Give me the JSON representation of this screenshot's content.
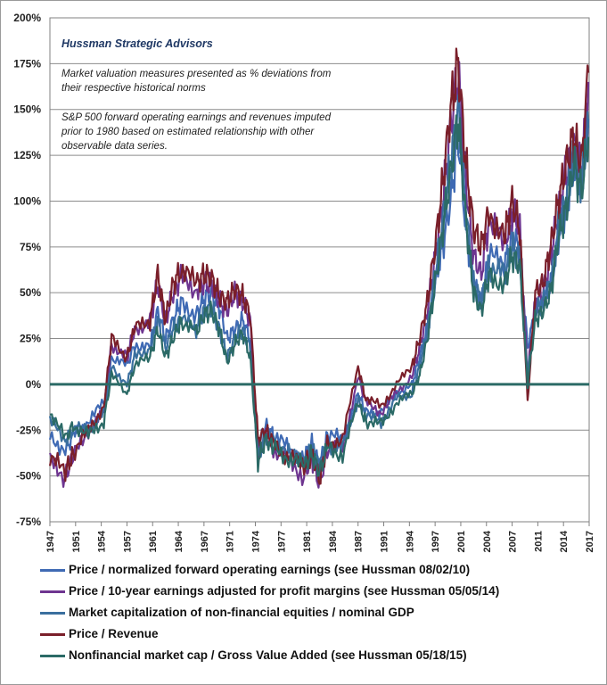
{
  "chart_data": {
    "type": "line",
    "title": "Hussman Strategic Advisors",
    "annotations": [
      "Market valuation measures presented as % deviations from",
      "their respective historical norms",
      "S&P 500 forward operating earnings and revenues imputed",
      "prior to 1980 based on estimated relationship with other",
      "observable data series."
    ],
    "ylim": [
      -75,
      200
    ],
    "yticks": [
      -75,
      -50,
      -25,
      0,
      25,
      50,
      75,
      100,
      125,
      150,
      175,
      200
    ],
    "ytick_labels": [
      "-75%",
      "-50%",
      "-25%",
      "0%",
      "25%",
      "50%",
      "75%",
      "100%",
      "125%",
      "150%",
      "175%",
      "200%"
    ],
    "xlim": [
      1947,
      2017
    ],
    "xtick_labels": [
      "1947",
      "1951",
      "1954",
      "1957",
      "1961",
      "1964",
      "1967",
      "1971",
      "1974",
      "1977",
      "1981",
      "1984",
      "1987",
      "1991",
      "1994",
      "1997",
      "2001",
      "2004",
      "2007",
      "2011",
      "2014",
      "2017"
    ],
    "xlabel": "",
    "ylabel": "",
    "x": [
      1947,
      1949,
      1950,
      1952,
      1954,
      1955,
      1957,
      1958,
      1960,
      1961,
      1962,
      1963,
      1964,
      1966,
      1967,
      1968,
      1969,
      1970,
      1971,
      1972,
      1973,
      1974,
      1975,
      1976,
      1978,
      1980,
      1981,
      1982,
      1983,
      1985,
      1987,
      1988,
      1990,
      1992,
      1994,
      1995,
      1996,
      1997,
      1998,
      1999,
      2000,
      2001,
      2002,
      2003,
      2004,
      2006,
      2007,
      2008,
      2009,
      2010,
      2011,
      2012,
      2013,
      2014,
      2015,
      2016,
      2016.9
    ],
    "series": [
      {
        "name": "Price / normalized forward operating earnings (see Hussman 08/02/10)",
        "color": "#3f6ab4",
        "values": [
          -28,
          -36,
          -28,
          -20,
          -10,
          15,
          10,
          22,
          20,
          40,
          25,
          35,
          45,
          38,
          47,
          50,
          42,
          25,
          30,
          35,
          25,
          -35,
          -22,
          -28,
          -35,
          -40,
          -32,
          -45,
          -28,
          -30,
          -5,
          -15,
          -15,
          -5,
          0,
          15,
          30,
          55,
          75,
          100,
          135,
          85,
          55,
          45,
          70,
          65,
          80,
          75,
          20,
          40,
          45,
          55,
          80,
          95,
          120,
          110,
          145
        ]
      },
      {
        "name": "Price / 10-year earnings adjusted for profit margins (see Hussman 05/05/14)",
        "color": "#6e3590",
        "values": [
          -42,
          -50,
          -40,
          -25,
          -15,
          22,
          15,
          30,
          35,
          55,
          35,
          50,
          58,
          52,
          55,
          55,
          45,
          40,
          50,
          45,
          35,
          -38,
          -28,
          -35,
          -42,
          -50,
          -40,
          -55,
          -35,
          -35,
          5,
          -10,
          -15,
          -5,
          5,
          20,
          40,
          70,
          100,
          140,
          170,
          110,
          70,
          60,
          90,
          75,
          95,
          85,
          5,
          45,
          50,
          70,
          95,
          115,
          130,
          115,
          165
        ]
      },
      {
        "name": "Market capitalization of non-financial equities / nominal GDP",
        "color": "#3a6f9e",
        "values": [
          -20,
          -30,
          -25,
          -25,
          -15,
          10,
          0,
          15,
          20,
          35,
          20,
          30,
          35,
          30,
          40,
          42,
          30,
          15,
          25,
          30,
          20,
          -40,
          -28,
          -30,
          -38,
          -42,
          -35,
          -45,
          -32,
          -35,
          -8,
          -18,
          -20,
          -8,
          -5,
          10,
          30,
          60,
          90,
          120,
          150,
          95,
          55,
          45,
          65,
          60,
          75,
          70,
          5,
          40,
          45,
          55,
          85,
          100,
          125,
          110,
          140
        ]
      },
      {
        "name": "Price / Revenue",
        "color": "#7a1f2a",
        "values": [
          -40,
          -48,
          -38,
          -25,
          -12,
          25,
          15,
          30,
          35,
          60,
          35,
          55,
          62,
          55,
          60,
          58,
          48,
          45,
          52,
          48,
          38,
          -30,
          -25,
          -32,
          -40,
          -45,
          -38,
          -52,
          -32,
          -30,
          10,
          -8,
          -12,
          0,
          10,
          25,
          45,
          75,
          110,
          150,
          175,
          120,
          85,
          75,
          95,
          80,
          100,
          85,
          -10,
          50,
          55,
          75,
          100,
          120,
          135,
          120,
          170
        ]
      },
      {
        "name": "Nonfinancial market cap / Gross Value Added (see Hussman 05/18/15)",
        "color": "#2b6a66",
        "values": [
          -15,
          -30,
          -22,
          -28,
          -20,
          5,
          -5,
          10,
          15,
          30,
          15,
          25,
          35,
          28,
          38,
          40,
          30,
          12,
          22,
          28,
          15,
          -42,
          -30,
          -35,
          -40,
          -45,
          -38,
          -48,
          -35,
          -38,
          -10,
          -20,
          -22,
          -10,
          -5,
          5,
          25,
          55,
          85,
          115,
          145,
          90,
          50,
          40,
          60,
          55,
          70,
          65,
          0,
          35,
          40,
          50,
          80,
          95,
          120,
          105,
          135
        ]
      }
    ],
    "zero_line": true,
    "grid": true,
    "legend_position": "bottom"
  }
}
